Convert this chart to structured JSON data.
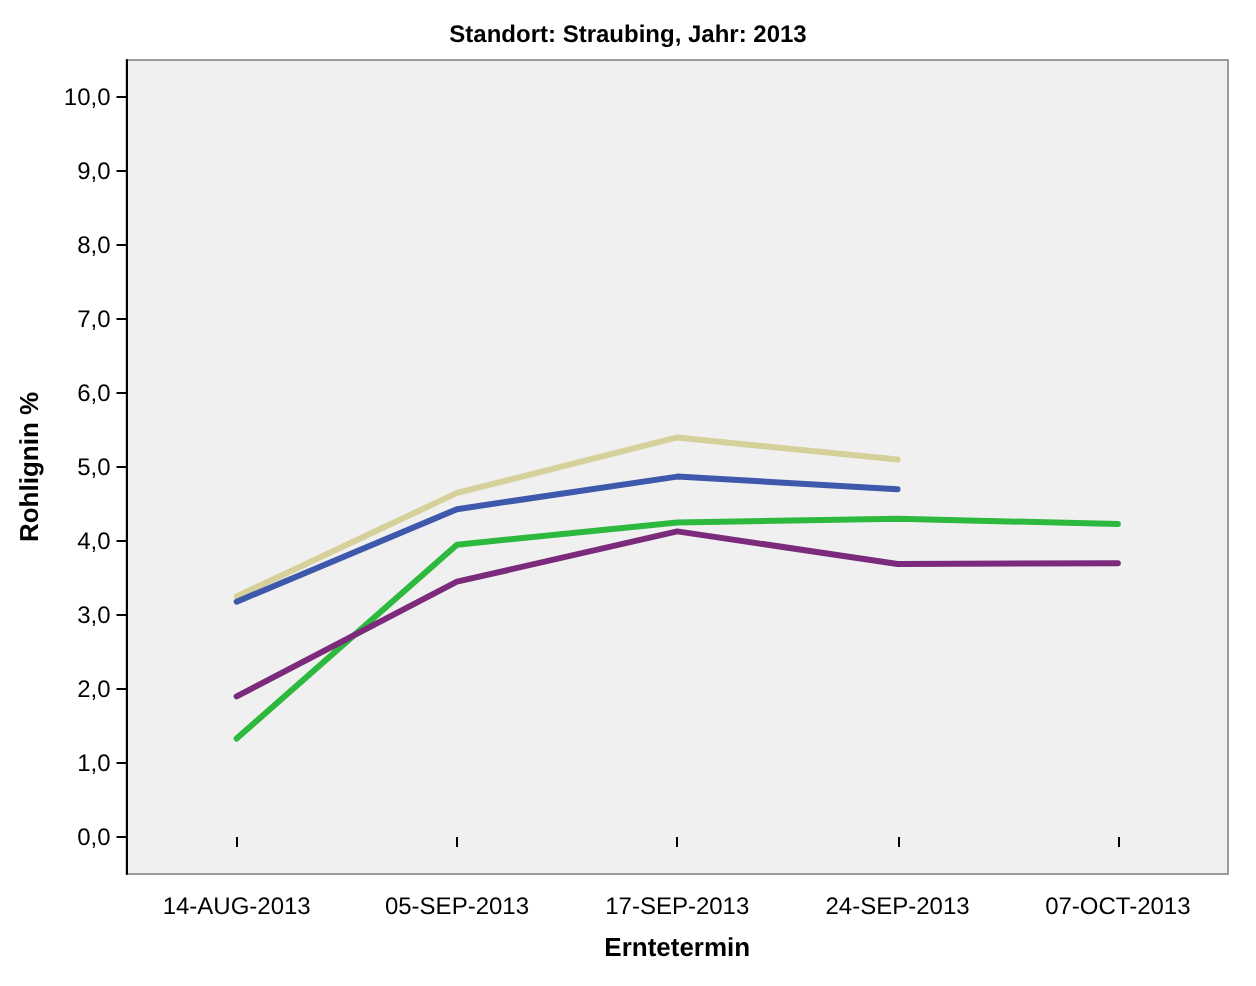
{
  "chart_data": {
    "type": "line",
    "title": "Standort: Straubing, Jahr: 2013",
    "xlabel": "Erntetermin",
    "ylabel": "Rohlignin %",
    "categories": [
      "14-AUG-2013",
      "05-SEP-2013",
      "17-SEP-2013",
      "24-SEP-2013",
      "07-OCT-2013"
    ],
    "series": [
      {
        "color": "#d6d09a",
        "values": [
          3.25,
          4.65,
          5.4,
          5.1,
          null
        ]
      },
      {
        "color": "#3e58ac",
        "values": [
          3.18,
          4.43,
          4.87,
          4.7,
          null
        ]
      },
      {
        "color": "#2db83e",
        "values": [
          1.33,
          3.95,
          4.25,
          4.3,
          4.23
        ]
      },
      {
        "color": "#7b2a7c",
        "values": [
          1.9,
          3.45,
          4.13,
          3.69,
          3.7
        ]
      }
    ],
    "ylim": [
      -0.5,
      10.5
    ],
    "yticks": [
      {
        "value": 0,
        "label": "0,0"
      },
      {
        "value": 1,
        "label": "1,0"
      },
      {
        "value": 2,
        "label": "2,0"
      },
      {
        "value": 3,
        "label": "3,0"
      },
      {
        "value": 4,
        "label": "4,0"
      },
      {
        "value": 5,
        "label": "5,0"
      },
      {
        "value": 6,
        "label": "6,0"
      },
      {
        "value": 7,
        "label": "7,0"
      },
      {
        "value": 8,
        "label": "8,0"
      },
      {
        "value": 9,
        "label": "9,0"
      },
      {
        "value": 10,
        "label": "10,0"
      }
    ],
    "grid": false,
    "marker": "none",
    "line_style": "solid"
  }
}
